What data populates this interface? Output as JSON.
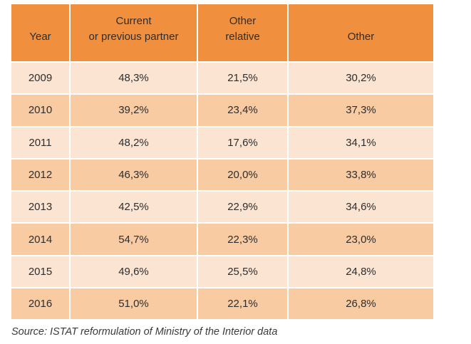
{
  "table": {
    "header": {
      "year": "Year",
      "partner_line1": "Current",
      "partner_line2": "or previous partner",
      "relative_line1": "Other",
      "relative_line2": "relative",
      "other": "Other"
    },
    "rows": [
      {
        "year": "2009",
        "partner": "48,3%",
        "relative": "21,5%",
        "other": "30,2%"
      },
      {
        "year": "2010",
        "partner": "39,2%",
        "relative": "23,4%",
        "other": "37,3%"
      },
      {
        "year": "2011",
        "partner": "48,2%",
        "relative": "17,6%",
        "other": "34,1%"
      },
      {
        "year": "2012",
        "partner": "46,3%",
        "relative": "20,0%",
        "other": "33,8%"
      },
      {
        "year": "2013",
        "partner": "42,5%",
        "relative": "22,9%",
        "other": "34,6%"
      },
      {
        "year": "2014",
        "partner": "54,7%",
        "relative": "22,3%",
        "other": "23,0%"
      },
      {
        "year": "2015",
        "partner": "49,6%",
        "relative": "25,5%",
        "other": "24,8%"
      },
      {
        "year": "2016",
        "partner": "51,0%",
        "relative": "22,1%",
        "other": "26,8%"
      }
    ]
  },
  "source_note": "Source: ISTAT reformulation of Ministry of the Interior data",
  "colors": {
    "header_bg": "#F0903F",
    "row_dark": "#F8CBA3",
    "row_light": "#FBE4D2",
    "gridline": "#FFFFFF"
  }
}
